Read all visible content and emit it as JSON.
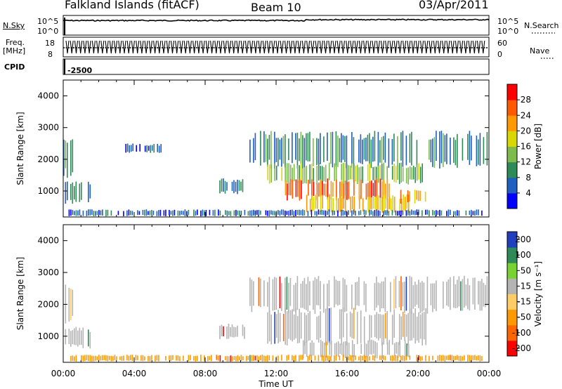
{
  "header": {
    "station": "Falkland Islands (fitACF)",
    "beam": "Beam 10",
    "date": "03/Apr/2011"
  },
  "strip_labels": {
    "nsky": "N.Sky",
    "nsky_ticks": [
      "10^5",
      "10^0"
    ],
    "nsearch": "N.Search",
    "nsearch_ticks": [
      "10^5",
      "10^0"
    ],
    "freq_line1": "Freq.",
    "freq_line2": "[MHz]",
    "freq_ticks": [
      "18",
      "8"
    ],
    "nave": "Nave",
    "nave_ticks": [
      "60",
      "0"
    ],
    "cpid": "CPID",
    "cpid_value": "-2500"
  },
  "colors": {
    "power_scale": [
      "#0000ff",
      "#1f5fbf",
      "#2e8b57",
      "#7dbb4c",
      "#d8d800",
      "#ff9900",
      "#ff5a00",
      "#ff0000"
    ],
    "velocity_scale": [
      "#ff0000",
      "#ff6600",
      "#ff9900",
      "#ffcc66",
      "#b4b4b4",
      "#78d232",
      "#2e8b57",
      "#1f3fbf"
    ]
  },
  "chart_data": [
    {
      "type": "heatmap",
      "panel": "power",
      "ylabel": "Slant Range [km]",
      "xlabel": "",
      "x_ticks": [
        "00:00",
        "04:00",
        "08:00",
        "12:00",
        "16:00",
        "20:00",
        "00:00"
      ],
      "y_ticks": [
        1000,
        2000,
        3000,
        4000
      ],
      "ylim": [
        180,
        4500
      ],
      "colorbar_label": "Power [dB]",
      "colorbar_ticks": [
        4,
        8,
        12,
        16,
        20,
        24,
        28
      ],
      "colorbar_range": [
        0,
        32
      ],
      "regions": [
        {
          "t0": 0.0,
          "t1": 0.5,
          "r0": 1400,
          "r1": 2700,
          "value": 10
        },
        {
          "t0": 0.1,
          "t1": 1.5,
          "r0": 600,
          "r1": 1300,
          "value": 8
        },
        {
          "t0": 0.3,
          "t1": 10.8,
          "r0": 200,
          "r1": 420,
          "value": 6
        },
        {
          "t0": 3.5,
          "t1": 5.5,
          "r0": 2200,
          "r1": 2500,
          "value": 6
        },
        {
          "t0": 8.8,
          "t1": 10.2,
          "r0": 900,
          "r1": 1400,
          "value": 8
        },
        {
          "t0": 10.5,
          "t1": 23.9,
          "r0": 1700,
          "r1": 2900,
          "value": 9
        },
        {
          "t0": 11.5,
          "t1": 20.5,
          "r0": 1200,
          "r1": 1900,
          "value": 14
        },
        {
          "t0": 12.5,
          "t1": 18.5,
          "r0": 700,
          "r1": 1400,
          "value": 26
        },
        {
          "t0": 13.5,
          "t1": 19.5,
          "r0": 300,
          "r1": 900,
          "value": 20
        },
        {
          "t0": 19.0,
          "t1": 20.5,
          "r0": 600,
          "r1": 1100,
          "value": 22
        },
        {
          "t0": 10.5,
          "t1": 23.9,
          "r0": 200,
          "r1": 420,
          "value": 6
        }
      ]
    },
    {
      "type": "heatmap",
      "panel": "velocity",
      "ylabel": "Slant Range [km]",
      "xlabel": "Time UT",
      "x_ticks": [
        "00:00",
        "04:00",
        "08:00",
        "12:00",
        "16:00",
        "20:00",
        "00:00"
      ],
      "y_ticks": [
        1000,
        2000,
        3000,
        4000
      ],
      "ylim": [
        180,
        4500
      ],
      "colorbar_label": "Velocity [m s⁻¹]",
      "colorbar_ticks": [
        -200,
        -100,
        -50,
        -15,
        15,
        50,
        100,
        200
      ],
      "regions": [
        {
          "t0": 0.0,
          "t1": 0.5,
          "r0": 1400,
          "r1": 2700,
          "value": 0
        },
        {
          "t0": 0.1,
          "t1": 1.5,
          "r0": 600,
          "r1": 1300,
          "value": 0
        },
        {
          "t0": 0.3,
          "t1": 10.8,
          "r0": 200,
          "r1": 420,
          "value": -60
        },
        {
          "t0": 8.8,
          "t1": 10.2,
          "r0": 900,
          "r1": 1400,
          "value": 0
        },
        {
          "t0": 10.5,
          "t1": 23.9,
          "r0": 1700,
          "r1": 2900,
          "value": 0
        },
        {
          "t0": 11.5,
          "t1": 20.5,
          "r0": 700,
          "r1": 1900,
          "value": 0
        },
        {
          "t0": 13.5,
          "t1": 19.5,
          "r0": 300,
          "r1": 900,
          "value": 0
        },
        {
          "t0": 10.5,
          "t1": 23.9,
          "r0": 200,
          "r1": 420,
          "value": -40
        }
      ]
    }
  ]
}
